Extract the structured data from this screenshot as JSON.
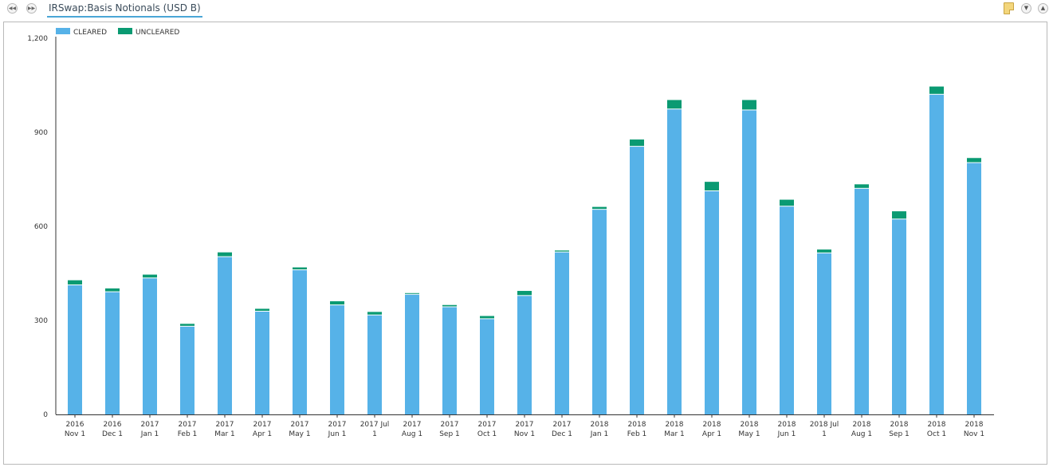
{
  "header": {
    "title": "IRSwap:Basis Notionals (USD B)",
    "prev_icon": "rewind-icon",
    "next_icon": "fast-forward-icon"
  },
  "toolbar": {
    "note_icon": "note-icon",
    "collapse_icon": "chevron-down-double-icon",
    "expand_icon": "chevron-up-double-icon"
  },
  "colors": {
    "cleared": "#56b2e8",
    "uncleared": "#0a9a72"
  },
  "chart_data": {
    "type": "bar",
    "stacked": true,
    "categories": [
      [
        "2016",
        "Nov 1"
      ],
      [
        "2016",
        "Dec 1"
      ],
      [
        "2017",
        "Jan 1"
      ],
      [
        "2017",
        "Feb 1"
      ],
      [
        "2017",
        "Mar 1"
      ],
      [
        "2017",
        "Apr 1"
      ],
      [
        "2017",
        "May 1"
      ],
      [
        "2017",
        "Jun 1"
      ],
      [
        "2017 Jul",
        "1"
      ],
      [
        "2017",
        "Aug 1"
      ],
      [
        "2017",
        "Sep 1"
      ],
      [
        "2017",
        "Oct 1"
      ],
      [
        "2017",
        "Nov 1"
      ],
      [
        "2017",
        "Dec 1"
      ],
      [
        "2018",
        "Jan 1"
      ],
      [
        "2018",
        "Feb 1"
      ],
      [
        "2018",
        "Mar 1"
      ],
      [
        "2018",
        "Apr 1"
      ],
      [
        "2018",
        "May 1"
      ],
      [
        "2018",
        "Jun 1"
      ],
      [
        "2018 Jul",
        "1"
      ],
      [
        "2018",
        "Aug 1"
      ],
      [
        "2018",
        "Sep 1"
      ],
      [
        "2018",
        "Oct 1"
      ],
      [
        "2018",
        "Nov 1"
      ]
    ],
    "series": [
      {
        "name": "CLEARED",
        "values": [
          412,
          390,
          434,
          280,
          502,
          328,
          460,
          348,
          316,
          382,
          342,
          304,
          378,
          517,
          653,
          854,
          973,
          712,
          970,
          663,
          514,
          720,
          622,
          1020,
          802
        ]
      },
      {
        "name": "UNCLEARED",
        "values": [
          16,
          12,
          12,
          9,
          15,
          9,
          9,
          13,
          11,
          5,
          7,
          10,
          16,
          6,
          9,
          23,
          30,
          30,
          33,
          22,
          12,
          14,
          26,
          26,
          16
        ]
      }
    ],
    "yticks": [
      "0",
      "300",
      "600",
      "900",
      "1,200"
    ],
    "ytick_values": [
      0,
      300,
      600,
      900,
      1200
    ],
    "ylim": [
      0,
      1200
    ],
    "legend": "top-left"
  }
}
